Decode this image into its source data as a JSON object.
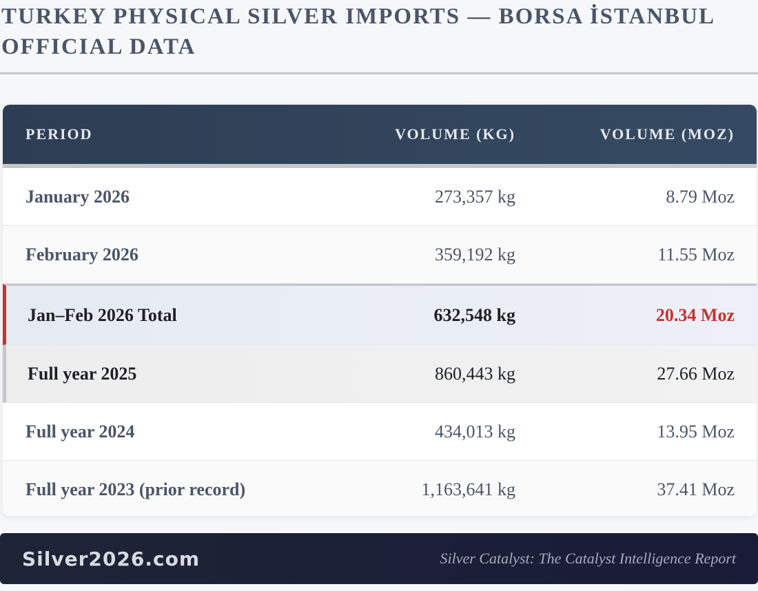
{
  "title": "TURKEY PHYSICAL SILVER IMPORTS — BORSA İSTANBUL OFFICIAL DATA",
  "table": {
    "headers": [
      "PERIOD",
      "VOLUME (KG)",
      "VOLUME (MOZ)"
    ],
    "rows": [
      {
        "period": "January 2026",
        "kg": "273,357 kg",
        "moz": "8.79 Moz"
      },
      {
        "period": "February 2026",
        "kg": "359,192 kg",
        "moz": "11.55 Moz"
      },
      {
        "period": "Jan–Feb 2026 Total",
        "kg": "632,548 kg",
        "moz": "20.34 Moz"
      },
      {
        "period": "Full year 2025",
        "kg": "860,443 kg",
        "moz": "27.66 Moz"
      },
      {
        "period": "Full year 2024",
        "kg": "434,013 kg",
        "moz": "13.95 Moz"
      },
      {
        "period": "Full year 2023 (prior record)",
        "kg": "1,163,641 kg",
        "moz": "37.41 Moz"
      }
    ]
  },
  "footer": {
    "brand": "Silver2026.com",
    "tagline": "Silver Catalyst: The Catalyst Intelligence Report"
  },
  "colors": {
    "header_bg": "#2d3e54",
    "accent_red": "#c63232",
    "footer_bg": "#1e2436"
  }
}
